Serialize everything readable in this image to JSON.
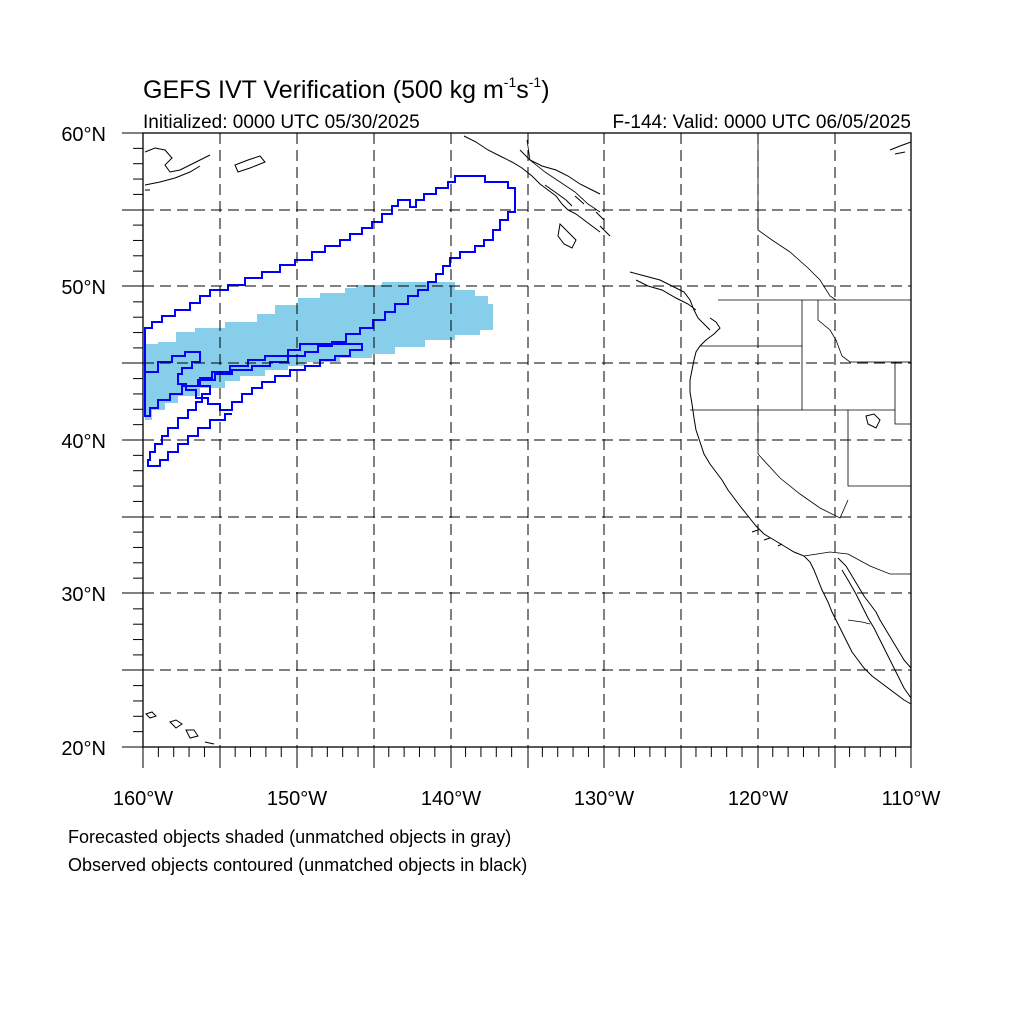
{
  "figure": {
    "title_main": "GEFS IVT Verification (500 kg m",
    "title_exp1": "-1",
    "title_mid": "s",
    "title_exp2": "-1",
    "title_end": ")",
    "initialized": "Initialized: 0000 UTC 05/30/2025",
    "valid": "F-144: Valid: 0000 UTC 06/05/2025"
  },
  "map": {
    "lon_range": [
      -160,
      -110
    ],
    "lat_range": [
      20,
      60
    ],
    "lat_labels": [
      "60°N",
      "50°N",
      "40°N",
      "30°N",
      "20°N"
    ],
    "lon_labels": [
      "160°W",
      "150°W",
      "140°W",
      "130°W",
      "120°W",
      "110°W"
    ],
    "grid_lines": true,
    "forecast_color": "#87ceeb",
    "observed_color": "#0000ff"
  },
  "legend": {
    "forecast_note": "Forecasted objects shaded (unmatched objects in gray)",
    "observed_note": "Observed objects contoured (unmatched objects in black)"
  }
}
